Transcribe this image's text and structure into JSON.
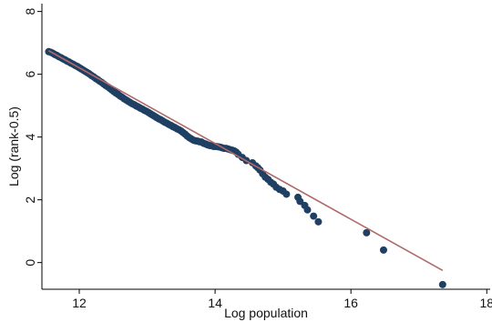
{
  "chart_data": {
    "type": "scatter",
    "xlabel": "Log population",
    "ylabel": "Log (rank-0.5)",
    "xlim": [
      11.45,
      18.05
    ],
    "ylim": [
      -0.85,
      8.25
    ],
    "x_ticks": [
      12,
      14,
      16,
      18
    ],
    "y_ticks": [
      0,
      2,
      4,
      6,
      8
    ],
    "grid": false,
    "colors": {
      "points": "#1f3f63",
      "fit_line": "#b06a6a",
      "axis": "#000000"
    },
    "fit_line": {
      "x": [
        11.55,
        17.35
      ],
      "y": [
        6.75,
        -0.25
      ]
    },
    "series": [
      {
        "x": [
          11.55,
          11.58,
          11.61,
          11.64,
          11.67,
          11.7,
          11.73,
          11.76,
          11.79,
          11.82,
          11.85,
          11.88,
          11.91,
          11.94,
          11.97,
          12.0,
          12.03,
          12.06,
          12.09,
          12.12,
          12.15,
          12.18,
          12.21,
          12.24,
          12.27,
          12.3,
          12.33,
          12.36,
          12.39,
          12.42,
          12.45,
          12.48,
          12.51,
          12.54,
          12.57,
          12.6,
          12.63,
          12.66,
          12.69,
          12.72,
          12.75,
          12.78,
          12.81,
          12.84,
          12.87,
          12.9,
          12.93,
          12.96,
          12.99,
          13.02,
          13.05,
          13.08,
          13.11,
          13.14,
          13.17,
          13.2,
          13.23,
          13.26,
          13.29,
          13.32,
          13.35,
          13.38,
          13.41,
          13.44,
          13.47,
          13.5,
          13.53,
          13.56,
          13.59,
          13.62,
          13.65,
          13.68,
          13.71,
          13.74,
          13.77,
          13.8,
          13.83,
          13.86,
          13.89,
          13.92,
          13.95,
          13.98,
          14.01,
          14.04,
          14.07,
          14.1,
          14.13,
          14.16,
          14.19,
          14.22,
          14.25,
          14.28,
          14.31,
          14.34,
          14.4,
          14.46,
          14.55,
          14.6,
          14.63,
          14.66,
          14.7,
          14.74,
          14.78,
          14.82,
          14.86,
          14.9,
          14.95,
          15.0,
          15.05,
          15.22,
          15.25,
          15.32,
          15.36,
          15.45,
          15.52,
          16.23,
          16.48,
          17.35
        ],
        "y": [
          6.72,
          6.7,
          6.67,
          6.63,
          6.6,
          6.56,
          6.53,
          6.49,
          6.46,
          6.42,
          6.39,
          6.35,
          6.32,
          6.28,
          6.25,
          6.21,
          6.17,
          6.13,
          6.09,
          6.05,
          6.01,
          5.96,
          5.92,
          5.87,
          5.83,
          5.78,
          5.74,
          5.69,
          5.64,
          5.6,
          5.55,
          5.5,
          5.45,
          5.4,
          5.36,
          5.31,
          5.27,
          5.22,
          5.18,
          5.14,
          5.1,
          5.06,
          5.03,
          4.99,
          4.96,
          4.92,
          4.89,
          4.85,
          4.82,
          4.78,
          4.74,
          4.7,
          4.66,
          4.62,
          4.58,
          4.55,
          4.51,
          4.47,
          4.44,
          4.4,
          4.37,
          4.33,
          4.3,
          4.26,
          4.23,
          4.19,
          4.14,
          4.09,
          4.03,
          3.98,
          3.94,
          3.9,
          3.88,
          3.87,
          3.85,
          3.84,
          3.8,
          3.78,
          3.75,
          3.73,
          3.72,
          3.7,
          3.7,
          3.69,
          3.68,
          3.66,
          3.64,
          3.64,
          3.62,
          3.6,
          3.58,
          3.56,
          3.52,
          3.45,
          3.35,
          3.25,
          3.18,
          3.08,
          3.02,
          2.95,
          2.83,
          2.72,
          2.65,
          2.56,
          2.5,
          2.4,
          2.33,
          2.28,
          2.18,
          2.08,
          1.95,
          1.82,
          1.68,
          1.48,
          1.3,
          0.95,
          0.4,
          -0.7
        ]
      }
    ]
  }
}
